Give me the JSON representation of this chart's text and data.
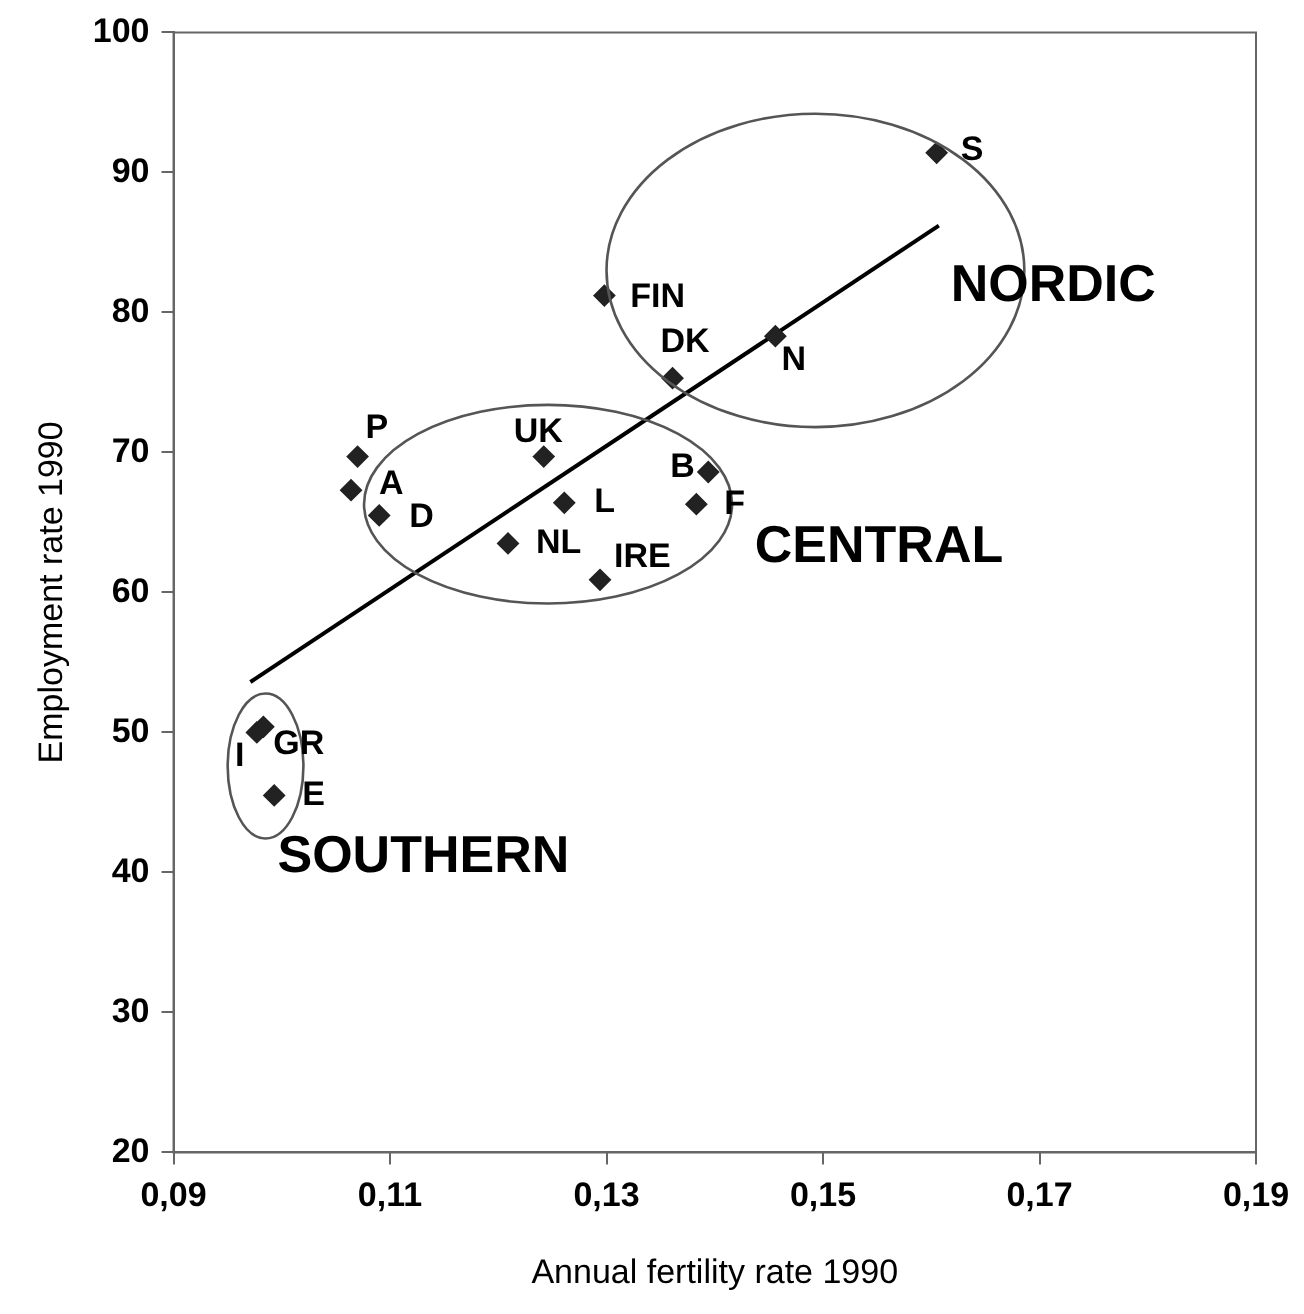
{
  "chart_data": {
    "type": "scatter",
    "xlabel": "Annual fertility rate 1990",
    "ylabel": "Employment rate 1990",
    "xlim": [
      0.09,
      0.19
    ],
    "xticks": [
      {
        "value": 0.09,
        "label": "0,09"
      },
      {
        "value": 0.11,
        "label": "0,11"
      },
      {
        "value": 0.13,
        "label": "0,13"
      },
      {
        "value": 0.15,
        "label": "0,15"
      },
      {
        "value": 0.17,
        "label": "0,17"
      },
      {
        "value": 0.19,
        "label": "0,19"
      }
    ],
    "ylim": [
      20,
      100
    ],
    "yticks": [
      20,
      30,
      40,
      50,
      60,
      70,
      80,
      90,
      100
    ],
    "grid": false,
    "legend": false,
    "series": [
      {
        "type": "scatter",
        "color": "#222222",
        "marker": "diamond",
        "x": [
          0.1605,
          0.1298,
          0.1361,
          0.1456,
          0.107,
          0.1064,
          0.109,
          0.1242,
          0.1261,
          0.1209,
          0.1294,
          0.1394,
          0.1383,
          0.0977,
          0.0983,
          0.0993
        ],
        "values": [
          91.4,
          81.2,
          75.3,
          78.3,
          69.7,
          67.3,
          65.5,
          69.7,
          66.4,
          63.5,
          60.9,
          68.6,
          66.3,
          50.0,
          50.4,
          45.5
        ],
        "value_labels": [
          "S",
          "FIN",
          "DK",
          "N",
          "P",
          "A",
          "D",
          "UK",
          "L",
          "NL",
          "IRE",
          "B",
          "F",
          "I",
          "GR",
          "E"
        ]
      },
      {
        "type": "line",
        "color": "#000000",
        "x": [
          0.0971,
          0.1607
        ],
        "values": [
          53.6,
          86.2
        ]
      }
    ],
    "annotations": [
      "NORDIC",
      "CENTRAL",
      "SOUTHERN"
    ]
  }
}
